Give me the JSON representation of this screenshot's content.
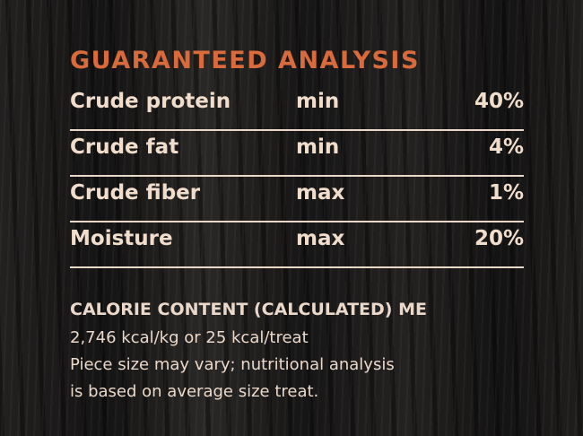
{
  "header": {
    "title": "GUARANTEED ANALYSIS"
  },
  "table": {
    "rows": [
      [
        "Crude protein",
        "min",
        "40%"
      ],
      [
        "Crude fat",
        "min",
        "4%"
      ],
      [
        "Crude fiber",
        "max",
        "1%"
      ],
      [
        "Moisture",
        "max",
        "20%"
      ]
    ]
  },
  "calorie": {
    "heading": "CALORIE CONTENT (CALCULATED) ME",
    "lines": [
      "2,746 kcal/kg or 25 kcal/treat",
      "Piece size may vary; nutritional analysis",
      "is based on average size treat."
    ]
  }
}
